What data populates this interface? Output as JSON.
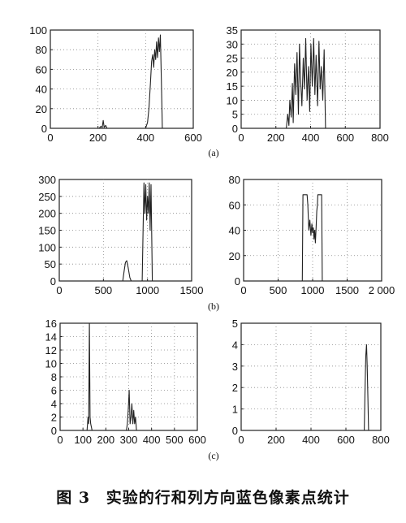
{
  "figure": {
    "caption_number": "图 3",
    "caption_text": "实验的行和列方向蓝色像素点统计",
    "row_labels": [
      "(a)",
      "(b)",
      "(c)"
    ]
  },
  "chart_data": [
    {
      "id": "a-left",
      "type": "line",
      "title": "",
      "xlabel": "",
      "ylabel": "",
      "xlim": [
        0,
        600
      ],
      "ylim": [
        0,
        100
      ],
      "xticks": [
        "0",
        "200",
        "400",
        "600"
      ],
      "yticks": [
        "0",
        "20",
        "40",
        "60",
        "80",
        "100"
      ],
      "grid": true,
      "color": "#222222",
      "series": [
        {
          "x": [
            0,
            205,
            212,
            218,
            222,
            226,
            232,
            238,
            400,
            408,
            414,
            420,
            425,
            430,
            434,
            438,
            442,
            446,
            450,
            454,
            458,
            462,
            466,
            470,
            600
          ],
          "y": [
            0,
            0,
            2,
            1,
            8,
            1,
            3,
            0,
            0,
            6,
            20,
            45,
            68,
            75,
            62,
            80,
            70,
            88,
            72,
            92,
            78,
            95,
            50,
            0,
            0
          ]
        }
      ]
    },
    {
      "id": "a-right",
      "type": "line",
      "title": "",
      "xlabel": "",
      "ylabel": "",
      "xlim": [
        0,
        800
      ],
      "ylim": [
        0,
        35
      ],
      "xticks": [
        "0",
        "200",
        "400",
        "600",
        "800"
      ],
      "yticks": [
        "0",
        "5",
        "10",
        "15",
        "20",
        "25",
        "30",
        "35"
      ],
      "grid": true,
      "color": "#222222",
      "series": [
        {
          "x": [
            0,
            260,
            268,
            275,
            280,
            288,
            295,
            300,
            308,
            315,
            322,
            330,
            336,
            342,
            350,
            358,
            365,
            372,
            380,
            388,
            395,
            402,
            410,
            418,
            425,
            432,
            440,
            448,
            455,
            462,
            470,
            478,
            486,
            800
          ],
          "y": [
            0,
            0,
            5,
            1,
            10,
            4,
            16,
            2,
            23,
            12,
            27,
            5,
            30,
            18,
            8,
            25,
            14,
            32,
            10,
            22,
            6,
            30,
            15,
            32,
            12,
            26,
            8,
            31,
            14,
            22,
            10,
            28,
            0,
            0
          ]
        }
      ]
    },
    {
      "id": "b-left",
      "type": "line",
      "title": "",
      "xlabel": "",
      "ylabel": "",
      "xlim": [
        0,
        1500
      ],
      "ylim": [
        0,
        300
      ],
      "xticks": [
        "0",
        "500",
        "1000",
        "1500"
      ],
      "yticks": [
        "0",
        "50",
        "100",
        "150",
        "200",
        "250",
        "300"
      ],
      "grid": true,
      "color": "#222222",
      "series": [
        {
          "x": [
            0,
            720,
            735,
            750,
            765,
            780,
            800,
            815,
            940,
            950,
            960,
            970,
            980,
            990,
            1000,
            1010,
            1020,
            1030,
            1040,
            1055,
            1500
          ],
          "y": [
            0,
            0,
            30,
            55,
            60,
            40,
            10,
            0,
            0,
            150,
            290,
            200,
            285,
            180,
            250,
            200,
            290,
            150,
            285,
            0,
            0
          ]
        }
      ]
    },
    {
      "id": "b-right",
      "type": "line",
      "title": "",
      "xlabel": "",
      "ylabel": "",
      "xlim": [
        0,
        2000
      ],
      "ylim": [
        0,
        80
      ],
      "xticks": [
        "0",
        "500",
        "1000",
        "1500",
        "2 000"
      ],
      "yticks": [
        "0",
        "20",
        "40",
        "60",
        "80"
      ],
      "grid": true,
      "color": "#222222",
      "series": [
        {
          "x": [
            0,
            850,
            860,
            920,
            930,
            945,
            960,
            975,
            990,
            1000,
            1010,
            1020,
            1030,
            1040,
            1050,
            1060,
            1070,
            1075,
            1130,
            1140,
            2000
          ],
          "y": [
            0,
            0,
            68,
            68,
            60,
            40,
            48,
            36,
            45,
            38,
            42,
            33,
            40,
            30,
            42,
            55,
            60,
            68,
            68,
            0,
            0
          ]
        }
      ]
    },
    {
      "id": "c-left",
      "type": "line",
      "title": "",
      "xlabel": "",
      "ylabel": "",
      "xlim": [
        0,
        600
      ],
      "ylim": [
        0,
        16
      ],
      "xticks": [
        "0",
        "100",
        "200",
        "300",
        "400",
        "500",
        "600"
      ],
      "yticks": [
        "0",
        "2",
        "4",
        "6",
        "8",
        "10",
        "12",
        "14",
        "16"
      ],
      "grid": true,
      "color": "#222222",
      "series": [
        {
          "x": [
            0,
            118,
            122,
            125,
            128,
            131,
            134,
            140,
            290,
            294,
            298,
            302,
            306,
            310,
            314,
            318,
            322,
            326,
            330,
            334,
            340,
            600
          ],
          "y": [
            0,
            0,
            2,
            1,
            16,
            2,
            1,
            0,
            0,
            1,
            3,
            6,
            1,
            2,
            4,
            1,
            3,
            1,
            2,
            0,
            0,
            0
          ]
        }
      ]
    },
    {
      "id": "c-right",
      "type": "line",
      "title": "",
      "xlabel": "",
      "ylabel": "",
      "xlim": [
        0,
        800
      ],
      "ylim": [
        0,
        5
      ],
      "xticks": [
        "0",
        "200",
        "400",
        "600",
        "800"
      ],
      "yticks": [
        "0",
        "1",
        "2",
        "3",
        "4",
        "5"
      ],
      "grid": true,
      "color": "#222222",
      "series": [
        {
          "x": [
            0,
            705,
            710,
            714,
            718,
            722,
            726,
            730,
            800
          ],
          "y": [
            0,
            0,
            2,
            3.5,
            4,
            3,
            1.5,
            0,
            0
          ]
        }
      ]
    }
  ]
}
